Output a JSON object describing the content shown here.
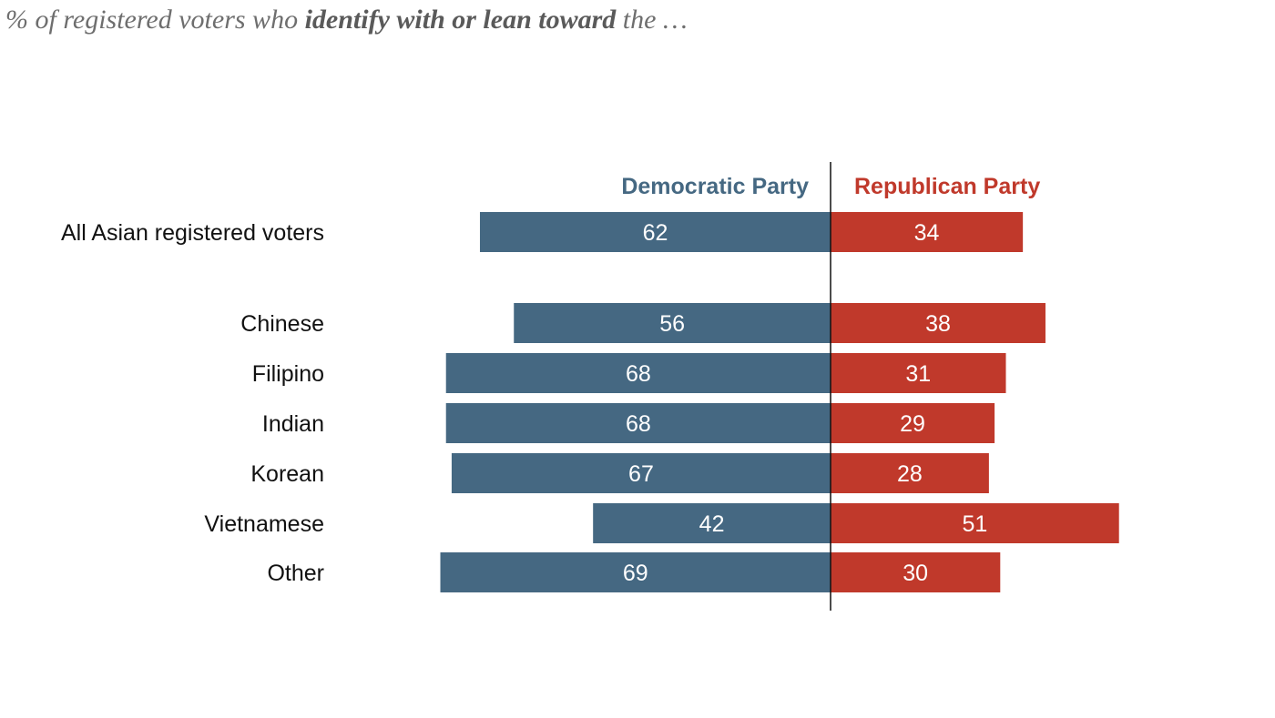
{
  "subtitle": {
    "prefix": "% of registered voters who ",
    "emphasis": "identify with or lean toward",
    "suffix": " the …"
  },
  "colors": {
    "democratic": "#456882",
    "republican": "#c0392b",
    "category_text": "#111111",
    "value_text": "#ffffff",
    "divider": "#111111"
  },
  "chart_data": {
    "type": "bar",
    "orientation": "horizontal-diverging",
    "categories": [
      "All Asian registered voters",
      "Chinese",
      "Filipino",
      "Indian",
      "Korean",
      "Vietnamese",
      "Other"
    ],
    "series": [
      {
        "name": "Democratic Party",
        "values": [
          62,
          56,
          68,
          68,
          67,
          42,
          69
        ]
      },
      {
        "name": "Republican Party",
        "values": [
          34,
          38,
          31,
          29,
          28,
          51,
          30
        ]
      }
    ],
    "title": "",
    "xlabel": "",
    "ylabel": "",
    "grid": false,
    "legend": "top-center"
  }
}
